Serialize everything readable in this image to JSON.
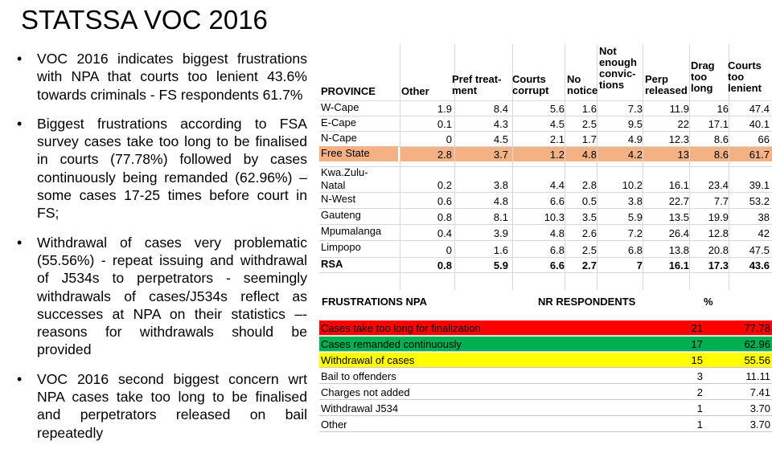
{
  "title": "STATSSA VOC 2016",
  "bullets": [
    "VOC 2016 indicates biggest frustrations with NPA that courts too lenient 43.6% towards criminals - FS respondents 61.7%",
    "Biggest frustrations according to FSA survey cases take too long to be finalised in courts (77.78%) followed by cases continuously being remanded (62.96%) – some cases 17-25 times before court in FS;",
    "Withdrawal of cases very problematic (55.56%) - repeat issuing and withdrawal of J534s to perpetrators - seemingly withdrawals of cases/J534s reflect as successes at NPA on their statistics –- reasons for withdrawals should be provided",
    "VOC 2016 second biggest concern wrt NPA cases take too long to be finalised and perpetrators released on bail repeatedly"
  ],
  "province_table": {
    "headers": [
      "PROVINCE",
      "Other",
      "Pref treat-\nment",
      "Courts\ncorrupt",
      "No\nnotice",
      "Not\nenough\nconvic-\ntions",
      "Perp\nreleased",
      "Drag\ntoo\nlong",
      "Courts\ntoo\nlenient"
    ],
    "rows": [
      {
        "province": "W-Cape",
        "values": [
          "1.9",
          "8.4",
          "5.6",
          "1.6",
          "7.3",
          "11.9",
          "16",
          "47.4"
        ]
      },
      {
        "province": "E-Cape",
        "values": [
          "0.1",
          "4.3",
          "4.5",
          "2.5",
          "9.5",
          "22",
          "17.1",
          "40.1"
        ]
      },
      {
        "province": "N-Cape",
        "values": [
          "0",
          "4.5",
          "2.1",
          "1.7",
          "4.9",
          "12.3",
          "8.6",
          "66"
        ]
      },
      {
        "province": "Free State",
        "values": [
          "2.8",
          "3.7",
          "1.2",
          "4.8",
          "4.2",
          "13",
          "8.6",
          "61.7"
        ],
        "highlight": "#f4b183"
      },
      {
        "province": "Kwa.Zulu-\nNatal",
        "values": [
          "0.2",
          "3.8",
          "4.4",
          "2.8",
          "10.2",
          "16.1",
          "23.4",
          "39.1"
        ]
      },
      {
        "province": "N-West",
        "values": [
          "0.6",
          "4.8",
          "6.6",
          "0.5",
          "3.8",
          "22.7",
          "7.7",
          "53.2"
        ]
      },
      {
        "province": "Gauteng",
        "values": [
          "0.8",
          "8.1",
          "10.3",
          "3.5",
          "5.9",
          "13.5",
          "19.9",
          "38"
        ]
      },
      {
        "province": "Mpumalanga",
        "values": [
          "0.4",
          "3.9",
          "4.8",
          "2.6",
          "7.2",
          "26.4",
          "12.8",
          "42"
        ]
      },
      {
        "province": "Limpopo",
        "values": [
          "0",
          "1.6",
          "6.8",
          "2.5",
          "6.8",
          "13.8",
          "20.8",
          "47.5"
        ]
      },
      {
        "province": "RSA",
        "values": [
          "0.8",
          "5.9",
          "6.6",
          "2.7",
          "7",
          "16.1",
          "17.3",
          "43.6"
        ],
        "bold": true
      }
    ]
  },
  "frustrations_table": {
    "headers": [
      "FRUSTRATIONS NPA",
      "NR RESPONDENTS",
      "%"
    ],
    "rows": [
      {
        "label": "Cases take too long for finalization",
        "n": "21",
        "pct": "77.78",
        "color": "#ff0000"
      },
      {
        "label": "Cases remanded continuously",
        "n": "17",
        "pct": "62.96",
        "color": "#00b050"
      },
      {
        "label": "Withdrawal of cases",
        "n": "15",
        "pct": "55.56",
        "color": "#ffff00"
      },
      {
        "label": "Bail to offenders",
        "n": "3",
        "pct": "11.11",
        "color": "#ffffff"
      },
      {
        "label": "Charges not added",
        "n": "2",
        "pct": "7.41",
        "color": "#ffffff"
      },
      {
        "label": "Withdrawal J534",
        "n": "1",
        "pct": "3.70",
        "color": "#ffffff"
      },
      {
        "label": "Other",
        "n": "1",
        "pct": "3.70",
        "color": "#ffffff"
      }
    ]
  }
}
